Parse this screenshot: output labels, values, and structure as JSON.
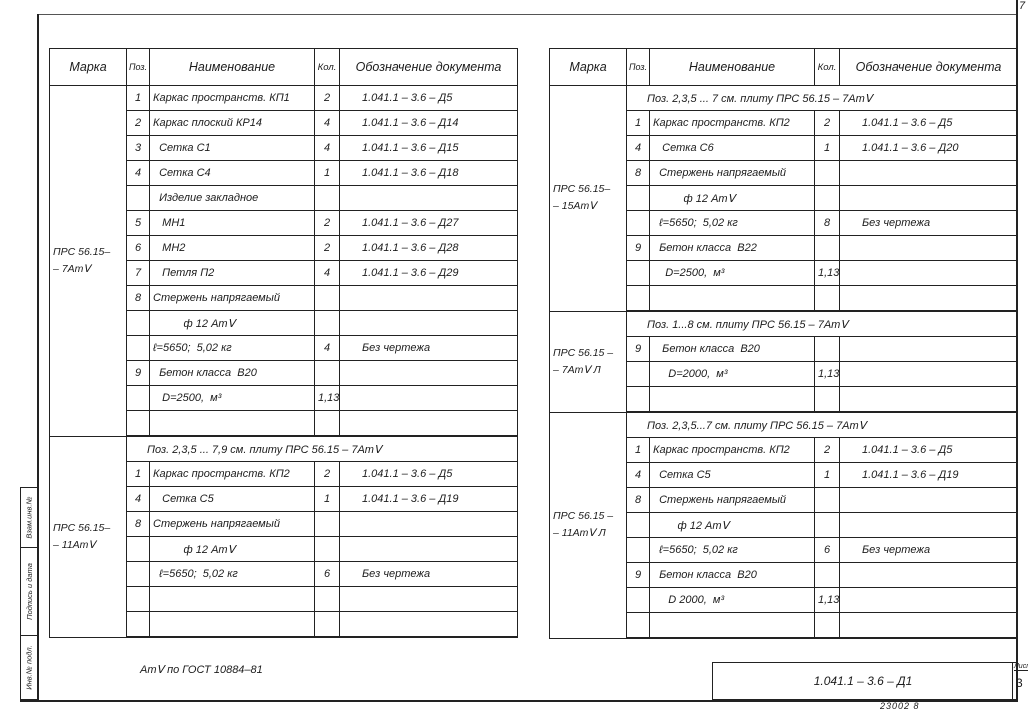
{
  "corner_number": "7",
  "headers": {
    "mark": "Марка",
    "pos": "Поз.",
    "name": "Наименование",
    "qty": "Кол.",
    "doc": "Обозначение документа"
  },
  "left_table": [
    {
      "mark": "ПРС 56.15–\n– 7АтⅤ",
      "rows": [
        {
          "pos": "1",
          "name": "Каркас пространств. КП1",
          "qty": "2",
          "doc": "1.041.1 – 3.6 – Д5"
        },
        {
          "pos": "2",
          "name": "Каркас плоский КР14",
          "qty": "4",
          "doc": "1.041.1 – 3.6 – Д14"
        },
        {
          "pos": "3",
          "name": "  Сетка С1",
          "qty": "4",
          "doc": "1.041.1 – 3.6 – Д15"
        },
        {
          "pos": "4",
          "name": "  Сетка С4",
          "qty": "1",
          "doc": "1.041.1 – 3.6 – Д18"
        },
        {
          "pos": "",
          "name": "  Изделие закладное",
          "qty": "",
          "doc": ""
        },
        {
          "pos": "5",
          "name": "   МН1",
          "qty": "2",
          "doc": "1.041.1 – 3.6 – Д27"
        },
        {
          "pos": "6",
          "name": "   МН2",
          "qty": "2",
          "doc": "1.041.1 – 3.6 – Д28"
        },
        {
          "pos": "7",
          "name": "   Петля П2",
          "qty": "4",
          "doc": "1.041.1 – 3.6 – Д29"
        },
        {
          "pos": "8",
          "name": "Стержень напрягаемый",
          "qty": "",
          "doc": ""
        },
        {
          "pos": "",
          "name": "          ф 12 АтⅤ",
          "qty": "",
          "doc": ""
        },
        {
          "pos": "",
          "name": "ℓ=5650;  5,02 кг",
          "qty": "4",
          "doc": "Без чертежа"
        },
        {
          "pos": "9",
          "name": "  Бетон класса  В20",
          "qty": "",
          "doc": ""
        },
        {
          "pos": "",
          "name": "   D=2500,  м³",
          "qty": "1,13",
          "doc": ""
        },
        {
          "pos": "",
          "name": "",
          "qty": "",
          "doc": ""
        }
      ]
    },
    {
      "mark": "ПРС 56.15–\n– 11АтⅤ",
      "rows": [
        {
          "note": "Поз. 2,3,5 ... 7,9  см. плиту  ПРС 56.15 – 7АтⅤ"
        },
        {
          "pos": "1",
          "name": "Каркас пространств. КП2",
          "qty": "2",
          "doc": "1.041.1 – 3.6 – Д5"
        },
        {
          "pos": "4",
          "name": "   Сетка С5",
          "qty": "1",
          "doc": "1.041.1 – 3.6 – Д19"
        },
        {
          "pos": "8",
          "name": "Стержень напрягаемый",
          "qty": "",
          "doc": ""
        },
        {
          "pos": "",
          "name": "          ф 12 АтⅤ",
          "qty": "",
          "doc": ""
        },
        {
          "pos": "",
          "name": "  ℓ=5650;  5,02 кг",
          "qty": "6",
          "doc": "Без чертежа"
        },
        {
          "pos": "",
          "name": "",
          "qty": "",
          "doc": ""
        },
        {
          "pos": "",
          "name": "",
          "qty": "",
          "doc": ""
        }
      ]
    }
  ],
  "right_table": [
    {
      "mark": "ПРС 56.15–\n– 15АтⅤ",
      "rows": [
        {
          "note": "Поз. 2,3,5 ... 7  см. плиту  ПРС 56.15 – 7АтⅤ"
        },
        {
          "pos": "1",
          "name": "Каркас пространств. КП2",
          "qty": "2",
          "doc": "1.041.1 – 3.6 – Д5"
        },
        {
          "pos": "4",
          "name": "   Сетка С6",
          "qty": "1",
          "doc": "1.041.1 – 3.6 – Д20"
        },
        {
          "pos": "8",
          "name": "  Стержень напрягаемый",
          "qty": "",
          "doc": ""
        },
        {
          "pos": "",
          "name": "          ф 12 АтⅤ",
          "qty": "",
          "doc": ""
        },
        {
          "pos": "",
          "name": "  ℓ=5650;  5,02 кг",
          "qty": "8",
          "doc": "Без чертежа"
        },
        {
          "pos": "9",
          "name": "  Бетон класса  В22",
          "qty": "",
          "doc": ""
        },
        {
          "pos": "",
          "name": "    D=2500,  м³",
          "qty": "1,13",
          "doc": ""
        },
        {
          "pos": "",
          "name": "",
          "qty": "",
          "doc": ""
        }
      ]
    },
    {
      "mark": "ПРС 56.15 –\n– 7АтⅤ Л",
      "rows": [
        {
          "note": "Поз. 1...8  см. плиту  ПРС 56.15 – 7АтⅤ"
        },
        {
          "pos": "9",
          "name": "   Бетон класса  В20",
          "qty": "",
          "doc": ""
        },
        {
          "pos": "",
          "name": "     D=2000,  м³",
          "qty": "1,13",
          "doc": ""
        },
        {
          "pos": "",
          "name": "",
          "qty": "",
          "doc": ""
        }
      ]
    },
    {
      "mark": "ПРС 56.15 –\n– 11АтⅤ Л",
      "rows": [
        {
          "note": "Поз. 2,3,5...7  см. плиту  ПРС 56.15 – 7АтⅤ"
        },
        {
          "pos": "1",
          "name": "Каркас пространств. КП2",
          "qty": "2",
          "doc": "1.041.1 – 3.6 – Д5"
        },
        {
          "pos": "4",
          "name": "  Сетка С5",
          "qty": "1",
          "doc": "1.041.1 – 3.6 – Д19"
        },
        {
          "pos": "8",
          "name": "  Стержень напрягаемый",
          "qty": "",
          "doc": ""
        },
        {
          "pos": "",
          "name": "        ф 12 АтⅤ",
          "qty": "",
          "doc": ""
        },
        {
          "pos": "",
          "name": "  ℓ=5650;  5,02 кг",
          "qty": "6",
          "doc": "Без чертежа"
        },
        {
          "pos": "9",
          "name": "  Бетон класса  В20",
          "qty": "",
          "doc": ""
        },
        {
          "pos": "",
          "name": "     D 2000,  м³",
          "qty": "1,13",
          "doc": ""
        },
        {
          "pos": "",
          "name": "",
          "qty": "",
          "doc": ""
        }
      ]
    }
  ],
  "footnote": "АтⅤ по ГОСТ 10884–81",
  "side_stamp": {
    "inv_orig": "Инв.№ подл.",
    "signature_date": "Подпись и дата",
    "replaced_inv": "Взам.инв.№"
  },
  "title_block": {
    "code": "1.041.1 – 3.6 – Д1",
    "sheet_label": "Лист",
    "sheet_number": "3"
  },
  "bottom_number": "23002    8"
}
